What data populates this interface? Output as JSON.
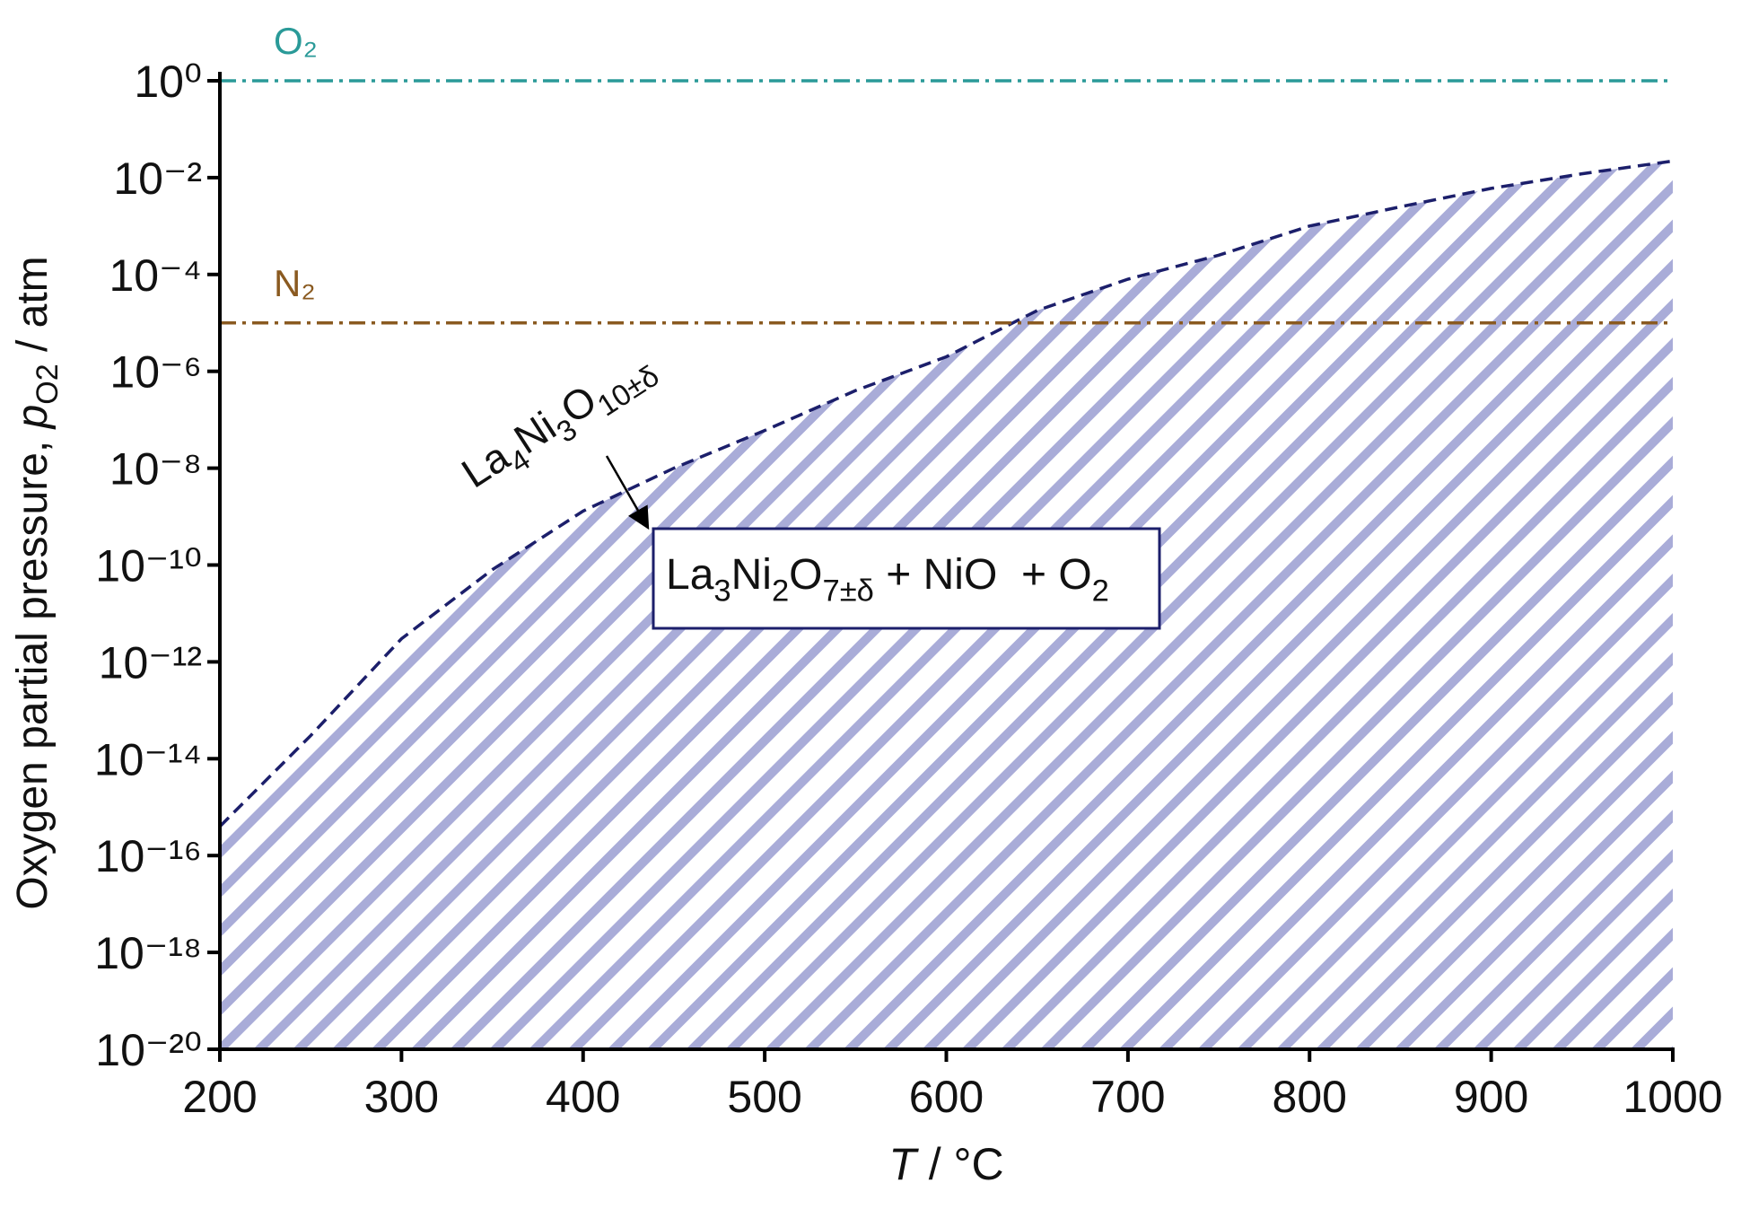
{
  "chart_data": {
    "type": "line",
    "xlabel": {
      "symbol": "T",
      "unit": " / °C"
    },
    "ylabel": {
      "text": "Oxygen partial pressure, ",
      "symbol": "p",
      "subscript": "O2",
      "unit": " / atm"
    },
    "xlim": [
      200,
      1000
    ],
    "xticks": [
      200,
      300,
      400,
      500,
      600,
      700,
      800,
      900,
      1000
    ],
    "ylim": [
      1e-20,
      1
    ],
    "ylog": true,
    "yticks": [
      {
        "value": 1e-20,
        "label": "10⁻²⁰"
      },
      {
        "value": 1e-18,
        "label": "10⁻¹⁸"
      },
      {
        "value": 1e-16,
        "label": "10⁻¹⁶"
      },
      {
        "value": 1e-14,
        "label": "10⁻¹⁴"
      },
      {
        "value": 1e-12,
        "label": "10⁻¹²"
      },
      {
        "value": 1e-10,
        "label": "10⁻¹⁰"
      },
      {
        "value": 1e-08,
        "label": "10⁻⁸"
      },
      {
        "value": 1e-06,
        "label": "10⁻⁶"
      },
      {
        "value": 0.0001,
        "label": "10⁻⁴"
      },
      {
        "value": 0.01,
        "label": "10⁻²"
      },
      {
        "value": 1,
        "label": "10⁰"
      }
    ],
    "grid": false,
    "series": [
      {
        "color": "#1c1f6b",
        "dash": "dashed",
        "fill_hatch": "#a9acd8",
        "x": [
          200,
          250,
          300,
          350,
          400,
          450,
          500,
          550,
          600,
          650,
          700,
          750,
          800,
          850,
          900,
          950,
          1000
        ],
        "values": [
          4e-16,
          3e-14,
          3e-12,
          8e-11,
          1.3e-09,
          1e-08,
          6e-08,
          4e-07,
          2e-06,
          1.8e-05,
          8e-05,
          0.00025,
          0.001,
          0.0025,
          0.006,
          0.012,
          0.022
        ]
      },
      {
        "name": "O₂",
        "color": "#2a9a98",
        "dash": "dashdot",
        "x": [
          200,
          1000
        ],
        "values": [
          1,
          1
        ]
      },
      {
        "name": "N₂",
        "color": "#8a5a20",
        "dash": "dashdot",
        "x": [
          200,
          1000
        ],
        "values": [
          1e-05,
          1e-05
        ]
      }
    ],
    "annotations": [
      {
        "parts": [
          "La",
          "4",
          "Ni",
          "3",
          "O",
          "10±δ"
        ]
      },
      {
        "parts": [
          "La",
          "3",
          "Ni",
          "2",
          "O",
          "7±δ",
          " + NiO  + O",
          "2"
        ]
      }
    ]
  }
}
